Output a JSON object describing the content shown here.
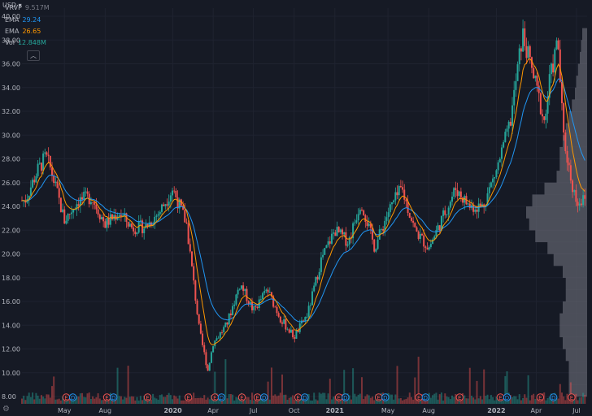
{
  "currency": "USD",
  "legend": [
    {
      "name": "VRVP",
      "value": "9.517M",
      "color": "#787b86"
    },
    {
      "name": "EMA",
      "value": "29.24",
      "color": "#2196f3"
    },
    {
      "name": "EMA",
      "value": "26.65",
      "color": "#ff9800"
    },
    {
      "name": "Vol",
      "value": "12.848M",
      "color": "#26a69a"
    }
  ],
  "colors": {
    "up": "#26a69a",
    "down": "#ef5350",
    "ema_fast": "#ff9800",
    "ema_slow": "#2196f3",
    "profile": "#5d606b"
  },
  "icons": {
    "collapse": "chevron-up-icon",
    "settings": "gear-icon"
  },
  "chart_data": {
    "type": "candlestick",
    "y_ticks": [
      "40.00",
      "38.00",
      "36.00",
      "34.00",
      "32.00",
      "30.00",
      "28.00",
      "26.00",
      "24.00",
      "22.00",
      "20.00",
      "18.00",
      "16.00",
      "14.00",
      "12.00",
      "10.00",
      "8.00"
    ],
    "ylim": [
      7.5,
      40.8
    ],
    "x_ticks": [
      {
        "label": "May",
        "date": "2019-05",
        "bold": false
      },
      {
        "label": "Aug",
        "date": "2019-08",
        "bold": false
      },
      {
        "label": "2020",
        "date": "2020-01",
        "bold": true
      },
      {
        "label": "Apr",
        "date": "2020-04",
        "bold": false
      },
      {
        "label": "Jul",
        "date": "2020-07",
        "bold": false
      },
      {
        "label": "Oct",
        "date": "2020-10",
        "bold": false
      },
      {
        "label": "2021",
        "date": "2021-01",
        "bold": true
      },
      {
        "label": "May",
        "date": "2021-05",
        "bold": false
      },
      {
        "label": "Aug",
        "date": "2021-08",
        "bold": false
      },
      {
        "label": "2022",
        "date": "2022-01",
        "bold": true
      },
      {
        "label": "Apr",
        "date": "2022-04",
        "bold": false
      },
      {
        "label": "Jul",
        "date": "2022-07",
        "bold": false
      }
    ],
    "price_path": [
      {
        "date": "2019-02",
        "price": 24.5
      },
      {
        "date": "2019-03",
        "price": 27.0
      },
      {
        "date": "2019-03-20",
        "price": 28.2
      },
      {
        "date": "2019-04",
        "price": 27.0
      },
      {
        "date": "2019-05",
        "price": 22.8
      },
      {
        "date": "2019-06",
        "price": 24.5
      },
      {
        "date": "2019-07",
        "price": 24.8
      },
      {
        "date": "2019-08",
        "price": 22.5
      },
      {
        "date": "2019-09",
        "price": 23.5
      },
      {
        "date": "2019-10",
        "price": 22.2
      },
      {
        "date": "2019-11",
        "price": 22.3
      },
      {
        "date": "2019-12",
        "price": 23.5
      },
      {
        "date": "2020-01",
        "price": 25.5
      },
      {
        "date": "2020-02",
        "price": 22.5
      },
      {
        "date": "2020-03",
        "price": 13.5
      },
      {
        "date": "2020-03-20",
        "price": 10.2
      },
      {
        "date": "2020-04",
        "price": 12.5
      },
      {
        "date": "2020-05",
        "price": 14.0
      },
      {
        "date": "2020-06",
        "price": 17.5
      },
      {
        "date": "2020-07",
        "price": 15.2
      },
      {
        "date": "2020-08",
        "price": 17.0
      },
      {
        "date": "2020-09",
        "price": 14.5
      },
      {
        "date": "2020-10",
        "price": 13.0
      },
      {
        "date": "2020-11",
        "price": 15.0
      },
      {
        "date": "2020-12",
        "price": 19.5
      },
      {
        "date": "2021-01",
        "price": 22.0
      },
      {
        "date": "2021-02",
        "price": 21.0
      },
      {
        "date": "2021-03",
        "price": 24.5
      },
      {
        "date": "2021-04",
        "price": 20.5
      },
      {
        "date": "2021-05",
        "price": 23.5
      },
      {
        "date": "2021-06",
        "price": 25.5
      },
      {
        "date": "2021-07",
        "price": 22.0
      },
      {
        "date": "2021-08",
        "price": 20.5
      },
      {
        "date": "2021-09",
        "price": 23.0
      },
      {
        "date": "2021-10",
        "price": 25.5
      },
      {
        "date": "2021-11",
        "price": 24.0
      },
      {
        "date": "2021-12",
        "price": 24.0
      },
      {
        "date": "2022-01",
        "price": 27.0
      },
      {
        "date": "2022-02",
        "price": 31.0
      },
      {
        "date": "2022-03",
        "price": 38.5
      },
      {
        "date": "2022-04",
        "price": 34.0
      },
      {
        "date": "2022-04-20",
        "price": 31.0
      },
      {
        "date": "2022-05",
        "price": 34.5
      },
      {
        "date": "2022-05-20",
        "price": 38.0
      },
      {
        "date": "2022-06",
        "price": 30.0
      },
      {
        "date": "2022-06-20",
        "price": 26.0
      },
      {
        "date": "2022-07",
        "price": 24.5
      }
    ],
    "volume_profile": [
      {
        "price": 8.5,
        "volume": 0.3
      },
      {
        "price": 9.5,
        "volume": 0.3
      },
      {
        "price": 10.5,
        "volume": 0.3
      },
      {
        "price": 11.5,
        "volume": 0.35
      },
      {
        "price": 12.5,
        "volume": 0.4
      },
      {
        "price": 13.5,
        "volume": 0.45
      },
      {
        "price": 14.5,
        "volume": 0.45
      },
      {
        "price": 15.5,
        "volume": 0.4
      },
      {
        "price": 16.5,
        "volume": 0.35
      },
      {
        "price": 17.5,
        "volume": 0.35
      },
      {
        "price": 18.5,
        "volume": 0.4
      },
      {
        "price": 19.5,
        "volume": 0.55
      },
      {
        "price": 20.5,
        "volume": 0.65
      },
      {
        "price": 21.5,
        "volume": 0.85
      },
      {
        "price": 22.5,
        "volume": 0.95
      },
      {
        "price": 23.5,
        "volume": 1.0
      },
      {
        "price": 24.5,
        "volume": 0.9
      },
      {
        "price": 25.5,
        "volume": 0.7
      },
      {
        "price": 26.5,
        "volume": 0.5
      },
      {
        "price": 27.5,
        "volume": 0.45
      },
      {
        "price": 28.5,
        "volume": 0.45
      },
      {
        "price": 29.5,
        "volume": 0.4
      },
      {
        "price": 30.5,
        "volume": 0.35
      },
      {
        "price": 31.5,
        "volume": 0.3
      },
      {
        "price": 32.5,
        "volume": 0.25
      },
      {
        "price": 33.5,
        "volume": 0.2
      },
      {
        "price": 34.5,
        "volume": 0.18
      },
      {
        "price": 35.5,
        "volume": 0.15
      },
      {
        "price": 36.5,
        "volume": 0.12
      },
      {
        "price": 37.5,
        "volume": 0.1
      },
      {
        "price": 38.5,
        "volume": 0.08
      }
    ],
    "events": [
      {
        "date": "2019-05-05",
        "type": "earnings",
        "label": "E"
      },
      {
        "date": "2019-05-20",
        "type": "dividend",
        "label": "D"
      },
      {
        "date": "2019-08-05",
        "type": "earnings",
        "label": "E"
      },
      {
        "date": "2019-08-20",
        "type": "dividend",
        "label": "D"
      },
      {
        "date": "2019-11-05",
        "type": "earnings",
        "label": "E"
      },
      {
        "date": "2020-02-05",
        "type": "earnings",
        "label": "E"
      },
      {
        "date": "2020-04-05",
        "type": "earnings",
        "label": "E"
      },
      {
        "date": "2020-04-20",
        "type": "dividend",
        "label": "D"
      },
      {
        "date": "2020-06-05",
        "type": "earnings",
        "label": "E"
      },
      {
        "date": "2020-07-10",
        "type": "earnings",
        "label": "E"
      },
      {
        "date": "2020-07-25",
        "type": "dividend",
        "label": "D"
      },
      {
        "date": "2020-10-10",
        "type": "earnings",
        "label": "E"
      },
      {
        "date": "2020-10-25",
        "type": "dividend",
        "label": "D"
      },
      {
        "date": "2021-01-10",
        "type": "earnings",
        "label": "E"
      },
      {
        "date": "2021-01-25",
        "type": "dividend",
        "label": "D"
      },
      {
        "date": "2021-04-10",
        "type": "earnings",
        "label": "E"
      },
      {
        "date": "2021-04-25",
        "type": "dividend",
        "label": "D"
      },
      {
        "date": "2021-07-10",
        "type": "earnings",
        "label": "E"
      },
      {
        "date": "2021-07-25",
        "type": "dividend",
        "label": "D"
      },
      {
        "date": "2021-10-10",
        "type": "earnings",
        "label": "E"
      },
      {
        "date": "2022-01-10",
        "type": "earnings",
        "label": "E"
      },
      {
        "date": "2022-01-25",
        "type": "dividend",
        "label": "D"
      },
      {
        "date": "2022-04-10",
        "type": "earnings",
        "label": "E"
      },
      {
        "date": "2022-05-10",
        "type": "dividend",
        "label": "D"
      },
      {
        "date": "2022-06-20",
        "type": "earnings",
        "label": "E"
      }
    ]
  }
}
